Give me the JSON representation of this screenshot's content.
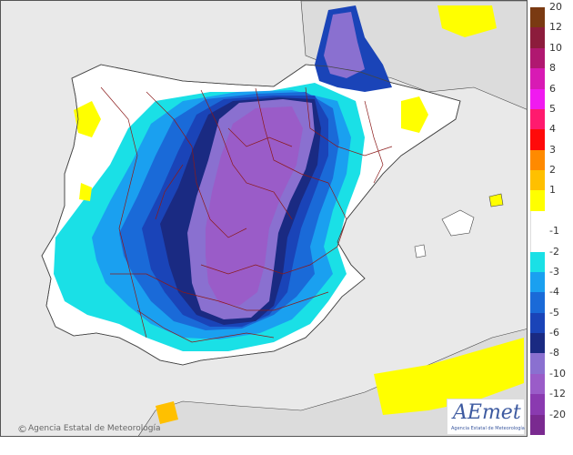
{
  "map": {
    "credit_symbol": "©",
    "credit_text": "Agencia Estatal de Meteorología",
    "logo_word": "AEmet",
    "logo_subtitle": "Agencia Estatal de Meteorología",
    "colors": {
      "sea": "#e9e9e9",
      "land_outside": "#dedede",
      "border_lines": "#8b1a1a",
      "coast_lines": "#444444"
    }
  },
  "legend": {
    "items": [
      {
        "label": "20",
        "color": "#7a3a12"
      },
      {
        "label": "12",
        "color": "#8c1c3c"
      },
      {
        "label": "10",
        "color": "#b01870"
      },
      {
        "label": "8",
        "color": "#d81ab4"
      },
      {
        "label": "6",
        "color": "#f01af0"
      },
      {
        "label": "5",
        "color": "#ff1a6e"
      },
      {
        "label": "4",
        "color": "#ff0a0a"
      },
      {
        "label": "3",
        "color": "#ff8a00"
      },
      {
        "label": "2",
        "color": "#ffc000"
      },
      {
        "label": "1",
        "color": "#ffff00"
      },
      {
        "label": "",
        "color": "#ffffff"
      },
      {
        "label": "-1",
        "color": "#ffffff"
      },
      {
        "label": "-2",
        "color": "#1ae0e6"
      },
      {
        "label": "-3",
        "color": "#1aa0f0"
      },
      {
        "label": "-4",
        "color": "#1a6ad8"
      },
      {
        "label": "-5",
        "color": "#1a44b8"
      },
      {
        "label": "-6",
        "color": "#1a2a82"
      },
      {
        "label": "-8",
        "color": "#8a70d0"
      },
      {
        "label": "-10",
        "color": "#9a5cc8"
      },
      {
        "label": "-12",
        "color": "#8a3ab0"
      },
      {
        "label": "-20",
        "color": "#7a2a90"
      }
    ]
  }
}
